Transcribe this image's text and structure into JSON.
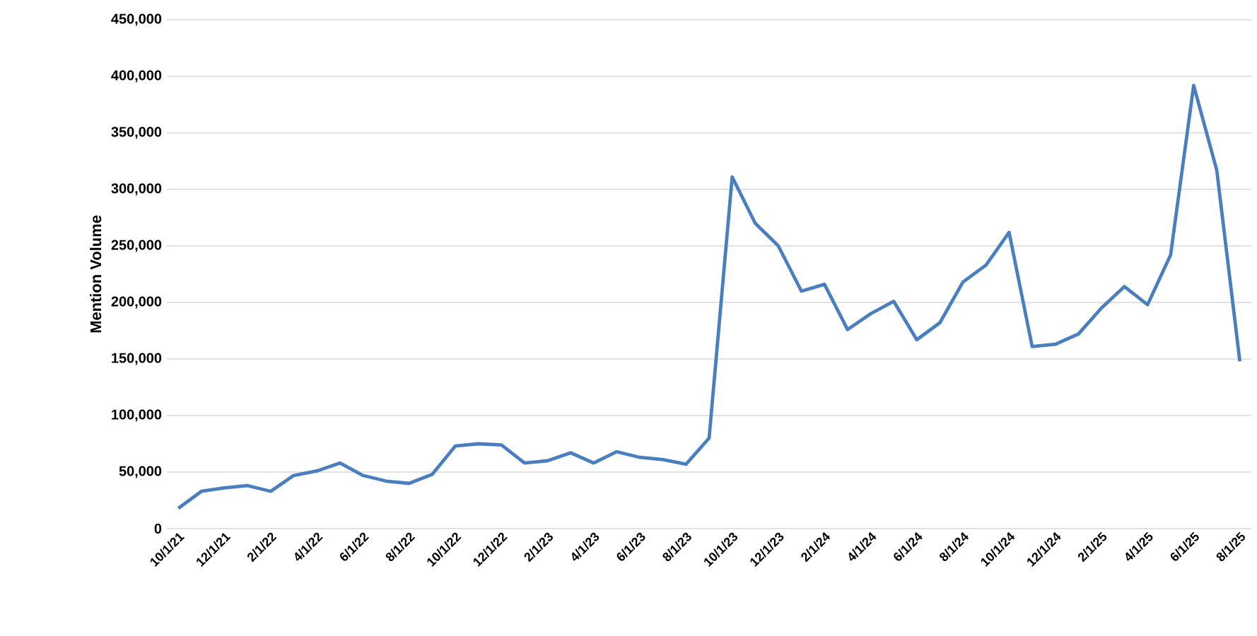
{
  "chart_data": {
    "type": "line",
    "ylabel": "Mention Volume",
    "categories": [
      "10/1/21",
      null,
      "12/1/21",
      null,
      "2/1/22",
      null,
      "4/1/22",
      null,
      "6/1/22",
      null,
      "8/1/22",
      null,
      "10/1/22",
      null,
      "12/1/22",
      null,
      "2/1/23",
      null,
      "4/1/23",
      null,
      "6/1/23",
      null,
      "8/1/23",
      null,
      "10/1/23",
      null,
      "12/1/23",
      null,
      "2/1/24",
      null,
      "4/1/24",
      null,
      "6/1/24",
      null,
      "8/1/24",
      null,
      "10/1/24",
      null,
      "12/1/24",
      null,
      "2/1/25",
      null,
      "4/1/25",
      null,
      "6/1/25",
      null,
      "8/1/25"
    ],
    "series": [
      {
        "color": "#4a7fbf",
        "values": [
          18000,
          33000,
          36000,
          38000,
          33000,
          47000,
          51000,
          58000,
          47000,
          42000,
          40000,
          48000,
          73000,
          75000,
          74000,
          58000,
          60000,
          67000,
          58000,
          68000,
          63000,
          61000,
          57000,
          80000,
          311000,
          270000,
          250000,
          210000,
          216000,
          176000,
          190000,
          201000,
          167000,
          182000,
          218000,
          233000,
          262000,
          161000,
          163000,
          172000,
          195000,
          214000,
          198000,
          242000,
          392000,
          317000,
          148000
        ]
      }
    ],
    "ylim": [
      0,
      450000
    ],
    "yticks": [
      {
        "value": 0,
        "label": "0"
      },
      {
        "value": 50000,
        "label": "50,000"
      },
      {
        "value": 100000,
        "label": "100,000"
      },
      {
        "value": 150000,
        "label": "150,000"
      },
      {
        "value": 200000,
        "label": "200,000"
      },
      {
        "value": 250000,
        "label": "250,000"
      },
      {
        "value": 300000,
        "label": "300,000"
      },
      {
        "value": 350000,
        "label": "350,000"
      },
      {
        "value": 400000,
        "label": "400,000"
      },
      {
        "value": 450000,
        "label": "450,000"
      }
    ],
    "grid": "y",
    "legend": false,
    "marker": "none",
    "line_style": "solid"
  }
}
